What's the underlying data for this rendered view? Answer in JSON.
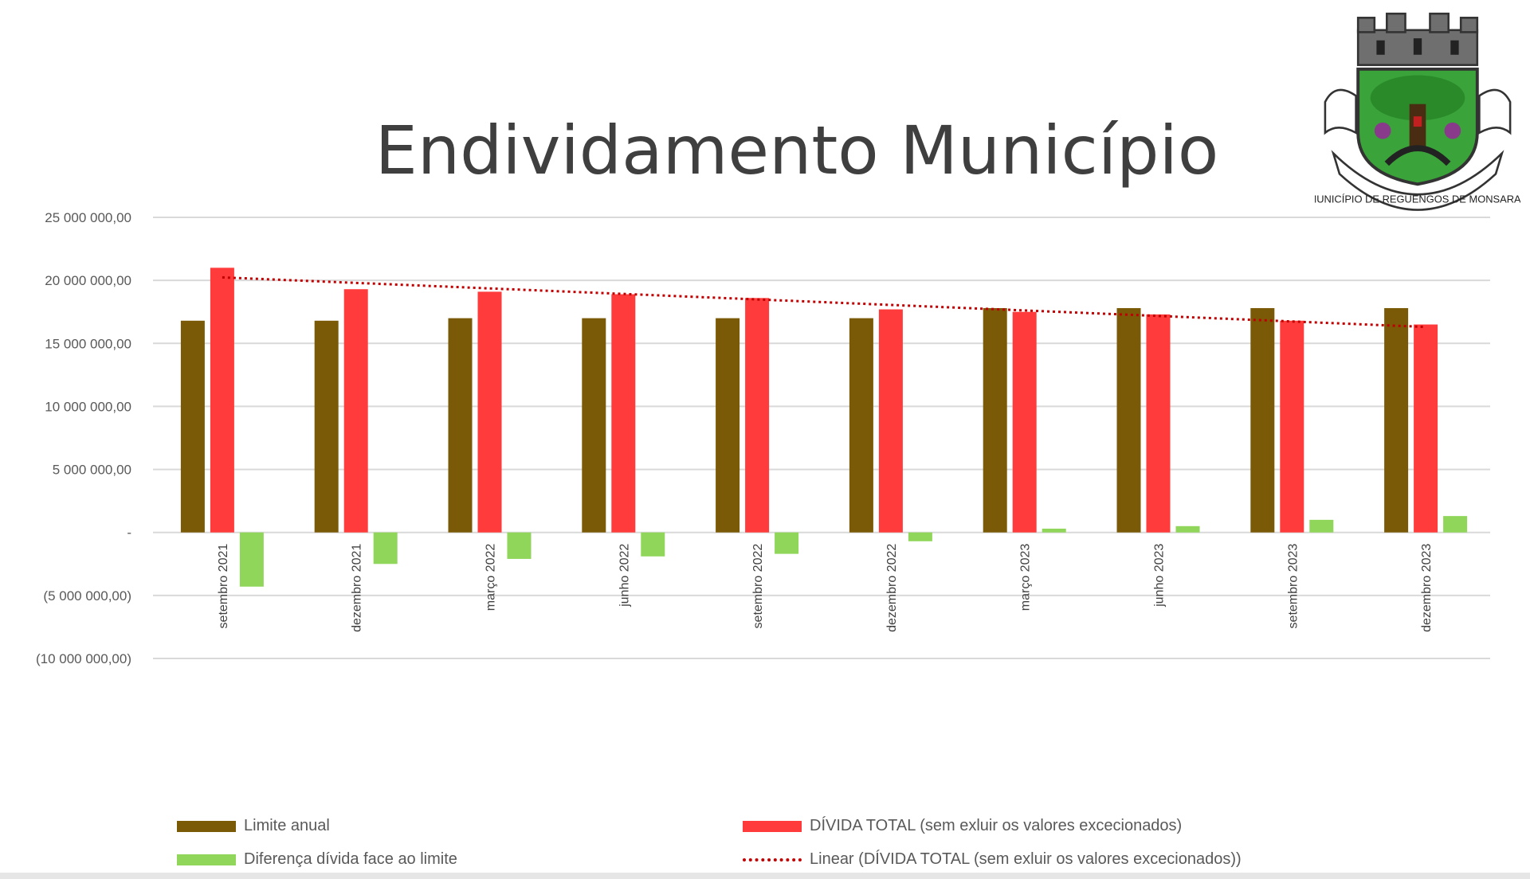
{
  "title": "Endividamento Município",
  "crest_text": "MUNICÍPIO DE REGUENGOS DE MONSARAZ",
  "colors": {
    "limite": "#7a5a06",
    "divida": "#ff3b3b",
    "diferenca": "#8fd65a",
    "trend": "#c00000",
    "grid": "#d9d9d9"
  },
  "chart_data": {
    "type": "bar",
    "categories": [
      "setembro 2021",
      "dezembro 2021",
      "março 2022",
      "junho 2022",
      "setembro 2022",
      "dezembro 2022",
      "março 2023",
      "junho 2023",
      "setembro 2023",
      "dezembro 2023"
    ],
    "series": [
      {
        "name": "Limite anual",
        "values": [
          16800000,
          16800000,
          17000000,
          17000000,
          17000000,
          17000000,
          17800000,
          17800000,
          17800000,
          17800000
        ]
      },
      {
        "name": "DÍVIDA TOTAL (sem exluir os valores excecionados)",
        "values": [
          21000000,
          19300000,
          19100000,
          18900000,
          18600000,
          17700000,
          17500000,
          17300000,
          16800000,
          16500000
        ]
      },
      {
        "name": "Diferença dívida face ao limite",
        "values": [
          -4300000,
          -2500000,
          -2100000,
          -1900000,
          -1700000,
          -700000,
          300000,
          500000,
          1000000,
          1300000
        ]
      }
    ],
    "trendline": {
      "name": "Linear (DÍVIDA TOTAL (sem exluir os valores excecionados))",
      "of_series": "DÍVIDA TOTAL (sem exluir os valores excecionados)",
      "type": "linear"
    },
    "yticks": [
      {
        "value": 25000000,
        "label": "25 000 000,00"
      },
      {
        "value": 20000000,
        "label": "20 000 000,00"
      },
      {
        "value": 15000000,
        "label": "15 000 000,00"
      },
      {
        "value": 10000000,
        "label": "10 000 000,00"
      },
      {
        "value": 5000000,
        "label": "5 000 000,00"
      },
      {
        "value": 0,
        "label": "-"
      },
      {
        "value": -5000000,
        "label": "(5 000 000,00)"
      },
      {
        "value": -10000000,
        "label": "(10 000 000,00)"
      }
    ],
    "ylim": [
      -10000000,
      25000000
    ],
    "grid": true,
    "legend_position": "bottom",
    "xlabel": "",
    "ylabel": ""
  },
  "legend": {
    "limite": "Limite anual",
    "divida": "DÍVIDA TOTAL (sem exluir os valores excecionados)",
    "diferenca": "Diferença dívida face ao limite",
    "trend": "Linear (DÍVIDA TOTAL (sem exluir os valores excecionados))"
  }
}
